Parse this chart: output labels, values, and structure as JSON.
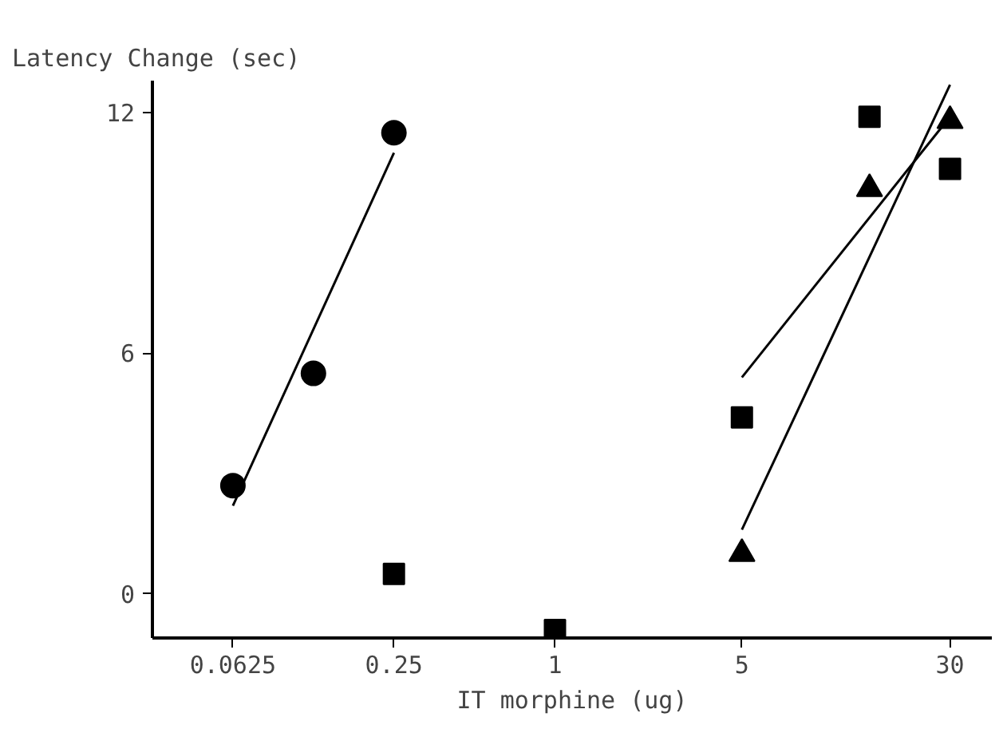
{
  "chart_data": {
    "type": "scatter",
    "ylabel": "Latency Change (sec)",
    "xlabel": "IT morphine (ug)",
    "log": "x",
    "xlim": [
      0.03125,
      43
    ],
    "xticks": [
      {
        "value": 0.0625,
        "label": "0.0625"
      },
      0.25,
      1,
      5,
      30
    ],
    "ylim": [
      -1.1,
      12.8
    ],
    "yticks": [
      0,
      6,
      12
    ],
    "series": [
      {
        "marker": "circle",
        "color": "#000000",
        "x": [
          0.0625,
          0.125,
          0.25
        ],
        "values": [
          2.7,
          5.5,
          11.5
        ]
      },
      {
        "marker": "square",
        "color": "#000000",
        "x": [
          0.25,
          1,
          5,
          15,
          30
        ],
        "values": [
          0.5,
          -0.9,
          4.4,
          11.9,
          10.6
        ]
      },
      {
        "marker": "triangle",
        "color": "#000000",
        "x": [
          5,
          15,
          30
        ],
        "values": [
          1.0,
          10.1,
          11.8
        ]
      },
      {
        "type": "line",
        "color": "#000000",
        "x": [
          0.0625,
          0.25
        ],
        "values": [
          2.2,
          11.0
        ]
      },
      {
        "type": "line",
        "color": "#000000",
        "x": [
          5,
          30
        ],
        "values": [
          5.4,
          11.9
        ]
      },
      {
        "type": "line",
        "color": "#000000",
        "x": [
          5,
          30
        ],
        "values": [
          1.6,
          12.7
        ]
      }
    ]
  }
}
